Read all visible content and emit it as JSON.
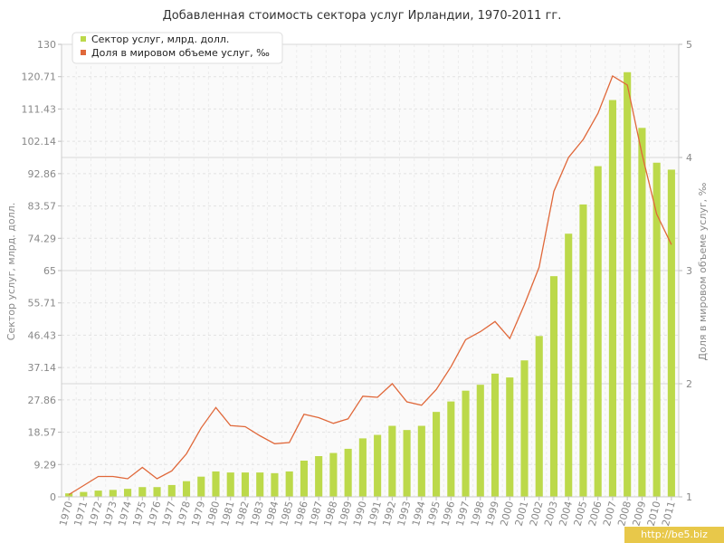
{
  "watermark": "http://be5.biz",
  "chart_data": {
    "type": "bar+line",
    "title": "Добавленная стоимость сектора услуг Ирландии, 1970-2011 гг.",
    "ylabel": "Сектор услуг, млрд. долл.",
    "y2label": "Доля в мировом объеме услуг, ‰",
    "ylim": [
      0,
      130
    ],
    "y2lim": [
      1,
      5
    ],
    "yticks": [
      "0",
      "9.29",
      "18.57",
      "27.86",
      "37.14",
      "46.43",
      "55.71",
      "65",
      "74.29",
      "83.57",
      "92.86",
      "102.14",
      "111.43",
      "120.71",
      "130"
    ],
    "y2ticks": [
      "1",
      "2",
      "3",
      "4",
      "5"
    ],
    "grid": true,
    "legend_position": "top-left",
    "colors": {
      "bars": "#bcd94a",
      "line": "#e0683a"
    },
    "categories": [
      "1970",
      "1971",
      "1972",
      "1973",
      "1974",
      "1975",
      "1976",
      "1977",
      "1978",
      "1979",
      "1980",
      "1981",
      "1982",
      "1983",
      "1984",
      "1985",
      "1986",
      "1987",
      "1988",
      "1989",
      "1990",
      "1991",
      "1992",
      "1993",
      "1994",
      "1995",
      "1996",
      "1997",
      "1998",
      "1999",
      "2000",
      "2001",
      "2002",
      "2003",
      "2004",
      "2005",
      "2006",
      "2007",
      "2008",
      "2009",
      "2010",
      "2011"
    ],
    "series": [
      {
        "name": "Сектор услуг, млрд. долл.",
        "type": "bar",
        "axis": "left",
        "values": [
          1.0,
          1.4,
          1.8,
          2.0,
          2.3,
          2.8,
          2.8,
          3.4,
          4.5,
          5.8,
          7.3,
          7.0,
          7.0,
          7.0,
          6.8,
          7.3,
          10.4,
          11.7,
          12.6,
          13.8,
          16.8,
          17.8,
          20.4,
          19.2,
          20.4,
          24.4,
          27.4,
          30.5,
          32.2,
          35.4,
          34.3,
          39.2,
          46.2,
          63.4,
          75.6,
          84.0,
          95.0,
          114.0,
          122.0,
          106.0,
          96.0,
          94.0
        ]
      },
      {
        "name": "Доля в мировом объеме услуг, ‰",
        "type": "line",
        "axis": "right",
        "values": [
          1.02,
          1.1,
          1.18,
          1.18,
          1.16,
          1.26,
          1.16,
          1.23,
          1.38,
          1.61,
          1.79,
          1.63,
          1.62,
          1.54,
          1.47,
          1.48,
          1.73,
          1.7,
          1.65,
          1.69,
          1.89,
          1.88,
          2.0,
          1.84,
          1.81,
          1.95,
          2.15,
          2.39,
          2.46,
          2.55,
          2.4,
          2.7,
          3.03,
          3.7,
          4.0,
          4.16,
          4.39,
          4.72,
          4.64,
          4.03,
          3.5,
          3.23
        ]
      }
    ]
  }
}
